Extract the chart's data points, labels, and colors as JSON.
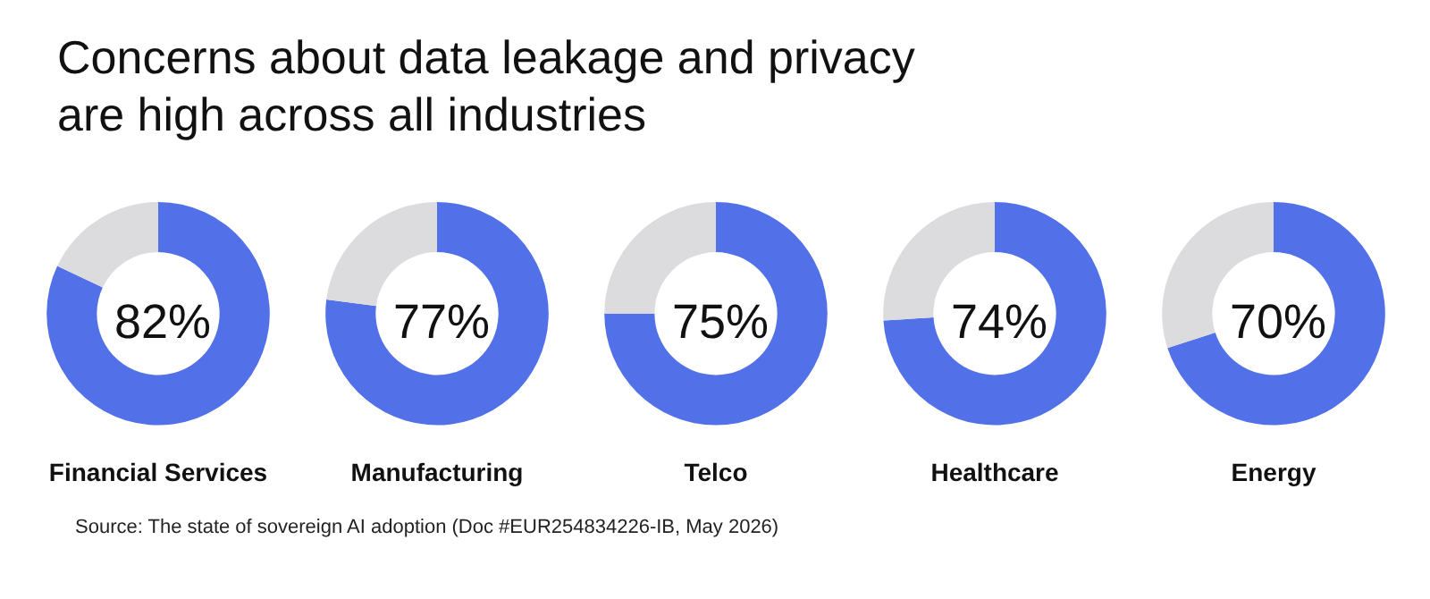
{
  "chart_data": [
    {
      "type": "donut",
      "title": "Concerns about data leakage and privacy are high across all industries",
      "xlabel": "Financial Services",
      "categories": [
        null,
        null
      ],
      "values": [
        82,
        18
      ],
      "colors": [
        "#5271e8",
        "#dcdcdf"
      ],
      "value_labels": [
        "82%",
        null
      ]
    },
    {
      "type": "donut",
      "xlabel": "Manufacturing",
      "categories": [
        null,
        null
      ],
      "values": [
        77,
        23
      ],
      "colors": [
        "#5271e8",
        "#dcdcdf"
      ],
      "value_labels": [
        "77%",
        null
      ]
    },
    {
      "type": "donut",
      "xlabel": "Telco",
      "categories": [
        null,
        null
      ],
      "values": [
        75,
        25
      ],
      "colors": [
        "#5271e8",
        "#dcdcdf"
      ],
      "value_labels": [
        "75%",
        null
      ]
    },
    {
      "type": "donut",
      "xlabel": "Healthcare",
      "categories": [
        null,
        null
      ],
      "values": [
        74,
        26
      ],
      "colors": [
        "#5271e8",
        "#dcdcdf"
      ],
      "value_labels": [
        "74%",
        null
      ]
    },
    {
      "type": "donut",
      "xlabel": "Energy",
      "categories": [
        null,
        null
      ],
      "values": [
        70,
        30
      ],
      "colors": [
        "#5271e8",
        "#dcdcdf"
      ],
      "value_labels": [
        "70%",
        null
      ],
      "annotations": [
        "Source: The state of sovereign AI adoption (Doc #EUR254834226-IB, May 2026)"
      ]
    }
  ]
}
